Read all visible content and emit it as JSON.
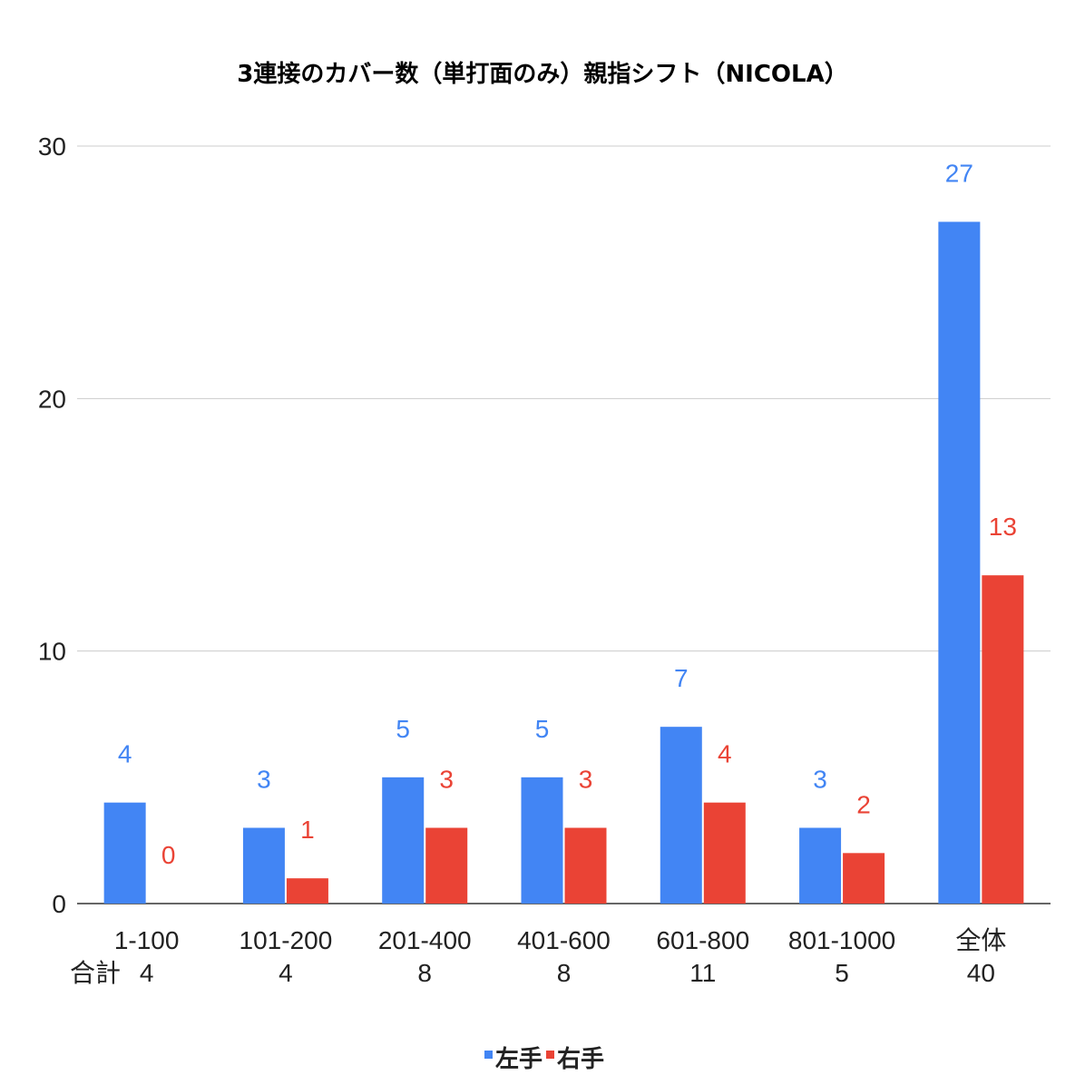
{
  "chart_data": {
    "type": "bar",
    "title": "3連接のカバー数（単打面のみ）親指シフト（NICOLA）",
    "categories": [
      "1-100",
      "101-200",
      "201-400",
      "401-600",
      "601-800",
      "801-1000",
      "全体"
    ],
    "subtotal_label": "合計",
    "subtotals": [
      "4",
      "4",
      "8",
      "8",
      "11",
      "5",
      "40"
    ],
    "series": [
      {
        "name": "左手",
        "values": [
          4,
          3,
          5,
          5,
          7,
          3,
          27
        ],
        "color": "#4285f4"
      },
      {
        "name": "右手",
        "values": [
          0,
          1,
          3,
          3,
          4,
          2,
          13
        ],
        "color": "#ea4335"
      }
    ],
    "ylim": [
      0,
      30
    ],
    "yticks": [
      0,
      10,
      20,
      30
    ],
    "grid": true,
    "legend": "bottom",
    "data_labels": true
  }
}
